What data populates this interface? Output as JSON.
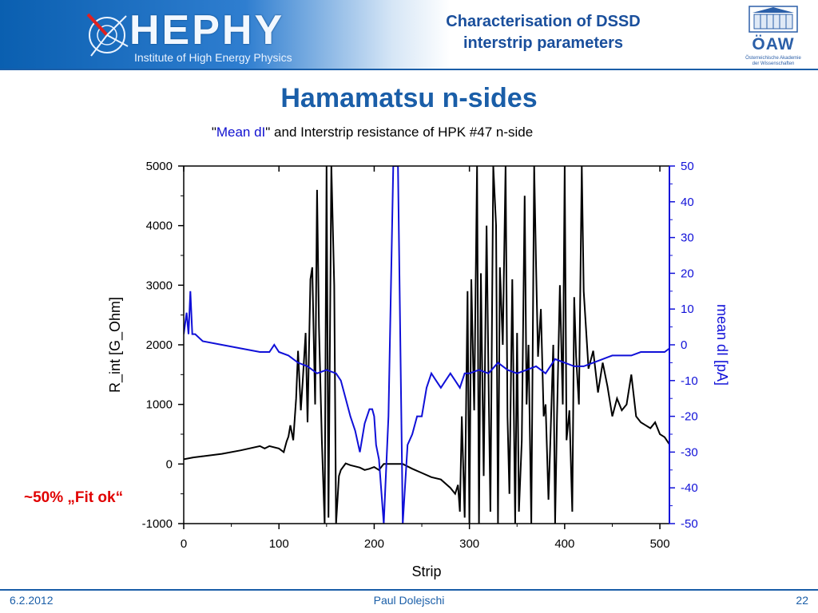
{
  "header": {
    "logo_text": "HEPHY",
    "logo_subtitle": "Institute of High Energy Physics",
    "title_line1": "Characterisation of DSSD",
    "title_line2": "interstrip parameters",
    "oaw_text": "ÖAW",
    "oaw_subtitle_line1": "Österreichische Akademie",
    "oaw_subtitle_line2": "der Wissenschaften"
  },
  "slide_title": "Hamamatsu n-sides",
  "annotation": "~50% „Fit ok“",
  "footer": {
    "date": "6.2.2012",
    "author": "Paul Dolejschi",
    "page": "22"
  },
  "colors": {
    "black_series": "#000000",
    "blue_series": "#1010d8",
    "brand": "#1a5ea8",
    "annotation": "#e00000"
  },
  "chart_data": {
    "type": "line",
    "title_parts": [
      "\"",
      "Mean dI",
      "\" and Interstrip resistance of HPK #47 n-side"
    ],
    "xlabel": "Strip",
    "ylabel_left": "R_int [G_Ohm]",
    "ylabel_right": "mean dI [pA]",
    "xlim": [
      0,
      510
    ],
    "ylim_left": [
      -1000,
      5000
    ],
    "ylim_right": [
      -50,
      50
    ],
    "x_ticks": [
      "0",
      "100",
      "200",
      "300",
      "400",
      "500"
    ],
    "y_left_ticks": [
      "-1000",
      "0",
      "1000",
      "2000",
      "3000",
      "4000",
      "5000"
    ],
    "y_right_ticks": [
      "-50",
      "-40",
      "-30",
      "-20",
      "-10",
      "0",
      "10",
      "20",
      "30",
      "40",
      "50"
    ],
    "grid": false,
    "series": [
      {
        "axis": "left",
        "color": "#000000",
        "x": [
          0,
          10,
          20,
          40,
          60,
          80,
          85,
          90,
          100,
          105,
          108,
          110,
          112,
          115,
          118,
          120,
          123,
          125,
          128,
          130,
          133,
          135,
          138,
          140,
          142,
          145,
          148,
          150,
          152,
          155,
          158,
          160,
          163,
          165,
          170,
          175,
          180,
          185,
          190,
          195,
          200,
          205,
          210,
          220,
          230,
          240,
          250,
          260,
          270,
          280,
          285,
          288,
          290,
          292,
          295,
          298,
          300,
          302,
          305,
          308,
          310,
          312,
          315,
          318,
          320,
          322,
          325,
          328,
          330,
          332,
          335,
          338,
          340,
          342,
          345,
          348,
          350,
          352,
          355,
          358,
          360,
          362,
          365,
          368,
          370,
          372,
          375,
          378,
          380,
          383,
          385,
          388,
          390,
          392,
          395,
          398,
          400,
          402,
          405,
          408,
          410,
          412,
          415,
          418,
          420,
          425,
          430,
          435,
          440,
          445,
          450,
          455,
          460,
          465,
          470,
          475,
          480,
          485,
          490,
          495,
          500,
          505,
          510
        ],
        "values": [
          80,
          110,
          130,
          170,
          230,
          300,
          260,
          300,
          260,
          200,
          380,
          460,
          650,
          400,
          1100,
          1900,
          900,
          1400,
          2200,
          700,
          3100,
          3300,
          1000,
          4600,
          2300,
          400,
          -1000,
          5000,
          -900,
          5000,
          3000,
          -1000,
          -200,
          -100,
          10,
          -20,
          -40,
          -60,
          -100,
          -80,
          -50,
          -100,
          0,
          0,
          0,
          -80,
          -150,
          -220,
          -260,
          -400,
          -500,
          -350,
          -800,
          800,
          -900,
          2900,
          -1000,
          3100,
          900,
          5000,
          -1000,
          3200,
          -200,
          4000,
          1500,
          -800,
          5000,
          4000,
          -1000,
          3300,
          2000,
          5000,
          800,
          -500,
          3100,
          -1000,
          2200,
          -800,
          400,
          4500,
          1000,
          2000,
          -1000,
          5000,
          3300,
          1800,
          2600,
          800,
          1000,
          -600,
          400,
          2000,
          -1000,
          800,
          3000,
          1000,
          5000,
          400,
          900,
          -800,
          2800,
          1800,
          1000,
          5000,
          2900,
          1600,
          1900,
          1200,
          1700,
          1300,
          800,
          1100,
          900,
          1000,
          1500,
          800,
          700,
          650,
          600,
          700,
          500,
          450,
          330
        ]
      },
      {
        "axis": "right",
        "color": "#1010d8",
        "x": [
          0,
          3,
          5,
          7,
          9,
          12,
          20,
          40,
          60,
          80,
          90,
          95,
          100,
          110,
          120,
          130,
          140,
          150,
          160,
          165,
          170,
          175,
          180,
          185,
          190,
          195,
          198,
          200,
          202,
          205,
          210,
          215,
          220,
          225,
          230,
          235,
          240,
          245,
          250,
          255,
          260,
          265,
          270,
          275,
          280,
          285,
          290,
          295,
          300,
          310,
          320,
          330,
          340,
          350,
          360,
          370,
          380,
          390,
          400,
          410,
          420,
          430,
          440,
          450,
          460,
          470,
          480,
          490,
          500,
          505,
          510
        ],
        "values": [
          3,
          9,
          3,
          15,
          3,
          3,
          1,
          0,
          -1,
          -2,
          -2,
          0,
          -2,
          -3,
          -5,
          -6,
          -8,
          -7,
          -8,
          -10,
          -15,
          -20,
          -24,
          -30,
          -22,
          -18,
          -18,
          -20,
          -28,
          -32,
          -50,
          -20,
          50,
          50,
          -50,
          -28,
          -25,
          -20,
          -20,
          -12,
          -8,
          -10,
          -12,
          -10,
          -8,
          -10,
          -12,
          -8,
          -8,
          -7,
          -8,
          -5,
          -7,
          -8,
          -7,
          -6,
          -8,
          -4,
          -5,
          -6,
          -6,
          -5,
          -4,
          -3,
          -3,
          -3,
          -2,
          -2,
          -2,
          -2,
          -1
        ]
      }
    ]
  }
}
